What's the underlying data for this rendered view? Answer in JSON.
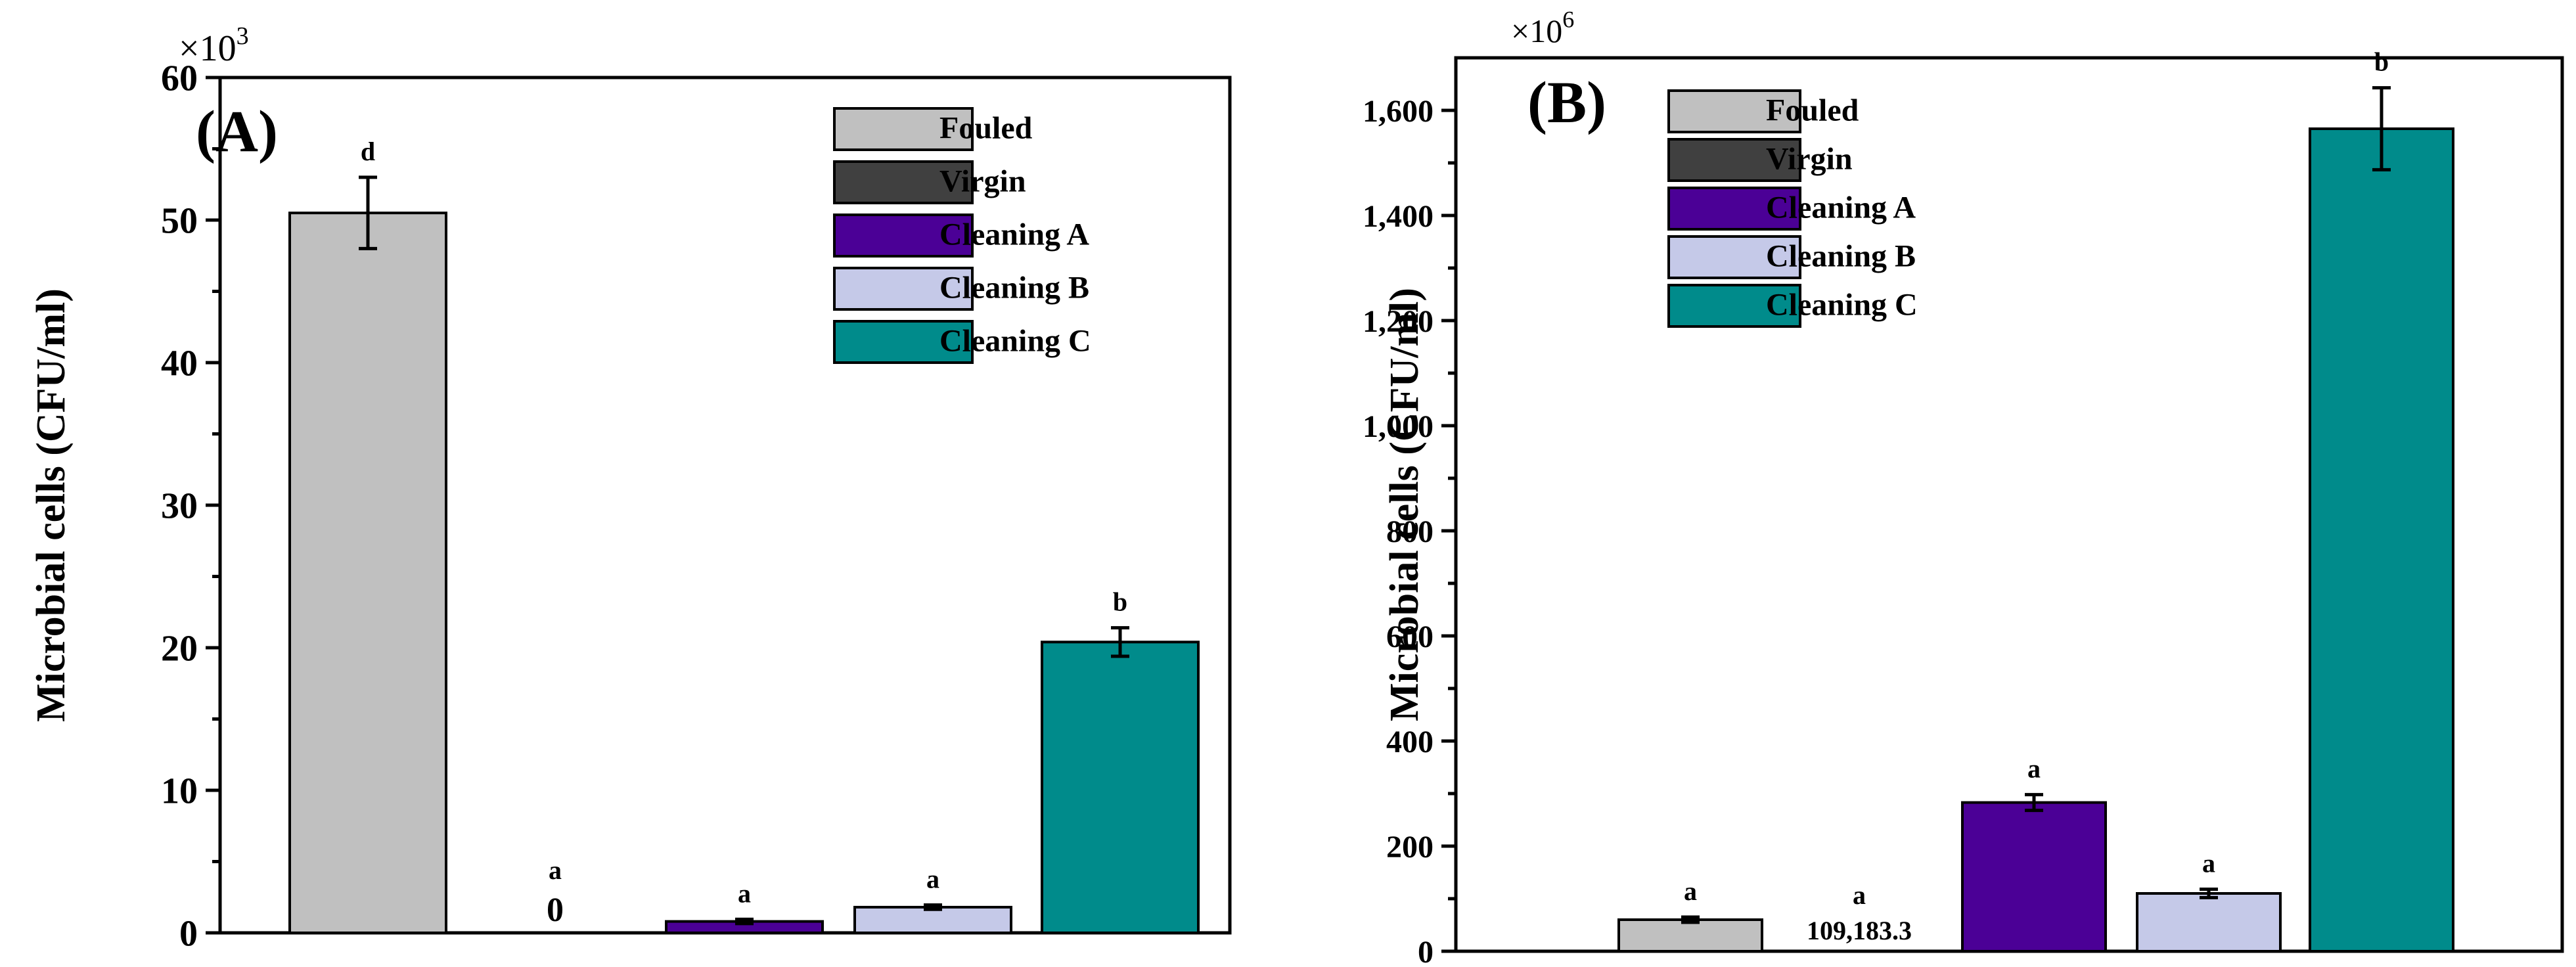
{
  "chart_data": [
    {
      "type": "bar",
      "panel_label": "(A)",
      "ylabel": "Microbial cells (CFU/ml)",
      "multiplier_label": "×10",
      "multiplier_exp": "3",
      "ylim": [
        0,
        60
      ],
      "yticks": [
        0,
        10,
        20,
        30,
        40,
        50,
        60
      ],
      "ytick_labels": [
        "0",
        "10",
        "20",
        "30",
        "40",
        "50",
        "60"
      ],
      "categories": [
        "Fouled",
        "Virgin",
        "Cleaning A",
        "Cleaning B",
        "Cleaning C"
      ],
      "values": [
        50.5,
        0,
        0.8,
        1.8,
        20.4
      ],
      "errors": [
        2.5,
        0,
        0.15,
        0.15,
        1.0
      ],
      "letters": [
        "d",
        "a",
        "a",
        "a",
        "b"
      ],
      "value_labels": [
        "",
        "0",
        "",
        "",
        ""
      ],
      "colors": [
        "#c0c0c0",
        "#404040",
        "#4b0096",
        "#c5c9e8",
        "#008b8b"
      ],
      "legend": [
        "Fouled",
        "Virgin",
        "Cleaning A",
        "Cleaning B",
        "Cleaning C"
      ],
      "legend_position": "top-right"
    },
    {
      "type": "bar",
      "panel_label": "(B)",
      "ylabel": "Microbial cells (CFU/ml)",
      "multiplier_label": "×10",
      "multiplier_exp": "6",
      "ylim": [
        0,
        1700
      ],
      "yticks": [
        0,
        200,
        400,
        600,
        800,
        1000,
        1200,
        1400,
        1600
      ],
      "ytick_labels": [
        "0",
        "200",
        "400",
        "600",
        "800",
        "1,000",
        "1,200",
        "1,400",
        "1,600"
      ],
      "categories": [
        "Fouled",
        "Virgin",
        "Cleaning A",
        "Cleaning B",
        "Cleaning C"
      ],
      "values": [
        60,
        0,
        283,
        110,
        1565
      ],
      "errors": [
        5,
        0,
        15,
        8,
        78
      ],
      "letters": [
        "a",
        "a",
        "a",
        "a",
        "b"
      ],
      "value_labels": [
        "",
        "109,183.3",
        "",
        "",
        ""
      ],
      "colors": [
        "#c0c0c0",
        "#404040",
        "#4b0096",
        "#c5c9e8",
        "#008b8b"
      ],
      "legend": [
        "Fouled",
        "Virgin",
        "Cleaning A",
        "Cleaning B",
        "Cleaning C"
      ],
      "legend_position": "top-left"
    }
  ]
}
